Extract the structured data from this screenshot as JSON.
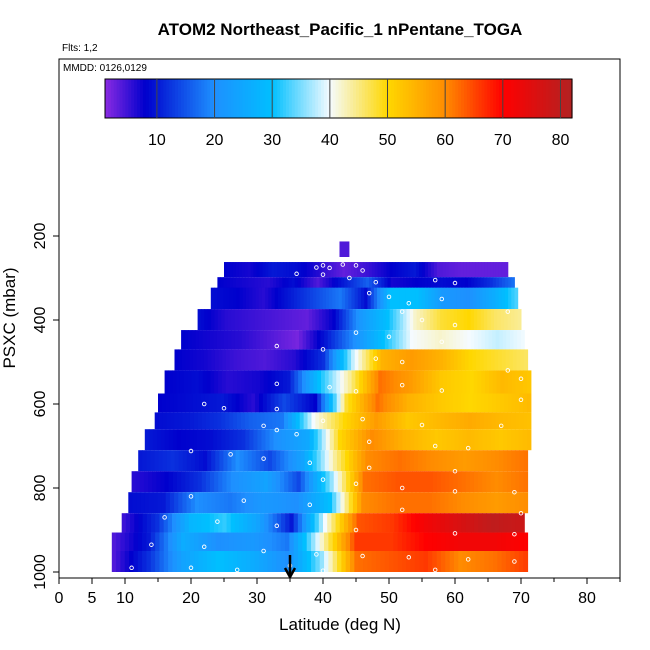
{
  "chart_data": {
    "type": "heatmap",
    "title": "ATOM2 Northeast_Pacific_1 nPentane_TOGA",
    "flights_label": "Flts: 1,2",
    "dates_label": "MMDD: 0126,0129",
    "xlabel": "Latitude (deg N)",
    "ylabel": "PSXC (mbar)",
    "xlim": [
      0,
      85
    ],
    "ylim": [
      1000,
      0
    ],
    "x_ticks": [
      "0",
      "5",
      "10",
      "20",
      "30",
      "40",
      "50",
      "60",
      "70",
      "80"
    ],
    "x_tick_values": [
      0,
      5,
      10,
      20,
      30,
      40,
      50,
      60,
      70,
      80
    ],
    "y_ticks": [
      "200",
      "400",
      "600",
      "800",
      "1000"
    ],
    "y_tick_values": [
      200,
      400,
      600,
      800,
      1000
    ],
    "colorbar": {
      "range": [
        1,
        82
      ],
      "ticks": [
        "10",
        "20",
        "30",
        "40",
        "50",
        "60",
        "70",
        "80"
      ],
      "tick_values": [
        10,
        20,
        30,
        40,
        50,
        60,
        70,
        80
      ],
      "colors": [
        "#8a2be2",
        "#0000cd",
        "#1e90ff",
        "#00bfff",
        "#f5fbff",
        "#ffd700",
        "#ff8c00",
        "#ff0000",
        "#b22222"
      ],
      "color_stops": [
        1,
        8,
        20,
        30,
        40,
        50,
        60,
        70,
        82
      ]
    },
    "grid": false,
    "arrow_marker_latitude": 35,
    "layers": [
      {
        "p_top": 213,
        "p_bot": 250,
        "lat_start": 42.5,
        "lat_end": 44,
        "values": [
          4
        ]
      },
      {
        "p_top": 262,
        "p_bot": 298,
        "lat_start": 25,
        "lat_end": 68,
        "values": [
          8,
          7,
          10,
          9,
          6,
          3,
          5,
          8,
          10,
          4,
          3,
          3,
          3
        ]
      },
      {
        "p_top": 298,
        "p_bot": 343,
        "lat_start": 24,
        "lat_end": 69,
        "values": [
          8,
          7,
          6,
          9,
          4,
          10,
          16,
          7,
          8,
          9,
          8,
          12,
          18
        ]
      },
      {
        "p_top": 323,
        "p_bot": 374,
        "lat_start": 23,
        "lat_end": 69.5,
        "values": [
          9,
          8,
          6,
          10,
          14,
          18,
          9,
          30,
          30,
          22,
          20,
          26,
          34
        ]
      },
      {
        "p_top": 374,
        "p_bot": 424,
        "lat_start": 21,
        "lat_end": 70,
        "values": [
          9,
          6,
          5,
          4,
          3,
          8,
          22,
          30,
          42,
          48,
          50,
          46,
          44
        ]
      },
      {
        "p_top": 424,
        "p_bot": 470,
        "lat_start": 18.5,
        "lat_end": 70.5,
        "values": [
          8,
          7,
          6,
          4,
          2,
          10,
          20,
          30,
          40,
          42,
          40,
          38,
          40
        ]
      },
      {
        "p_top": 470,
        "p_bot": 520,
        "lat_start": 17.5,
        "lat_end": 71,
        "values": [
          8,
          7,
          5,
          4,
          6,
          12,
          38,
          55,
          58,
          55,
          50,
          48,
          46
        ]
      },
      {
        "p_top": 520,
        "p_bot": 575,
        "lat_start": 16,
        "lat_end": 71.5,
        "values": [
          8,
          9,
          6,
          7,
          10,
          30,
          44,
          62,
          58,
          52,
          50,
          54,
          52
        ]
      },
      {
        "p_top": 575,
        "p_bot": 620,
        "lat_start": 15,
        "lat_end": 71.5,
        "values": [
          8,
          9,
          10,
          6,
          14,
          8,
          48,
          62,
          55,
          52,
          50,
          52,
          54
        ]
      },
      {
        "p_top": 620,
        "p_bot": 660,
        "lat_start": 14.5,
        "lat_end": 71.5,
        "values": [
          9,
          10,
          12,
          16,
          18,
          40,
          50,
          58,
          52,
          54,
          56,
          54,
          53
        ]
      },
      {
        "p_top": 660,
        "p_bot": 710,
        "lat_start": 13,
        "lat_end": 71.5,
        "values": [
          10,
          8,
          9,
          12,
          20,
          25,
          50,
          60,
          55,
          52,
          54,
          52,
          54
        ]
      },
      {
        "p_top": 710,
        "p_bot": 760,
        "lat_start": 12,
        "lat_end": 71,
        "values": [
          10,
          12,
          9,
          20,
          14,
          24,
          44,
          60,
          62,
          60,
          58,
          60,
          62
        ]
      },
      {
        "p_top": 760,
        "p_bot": 810,
        "lat_start": 11,
        "lat_end": 71,
        "values": [
          6,
          8,
          12,
          20,
          24,
          14,
          36,
          62,
          64,
          64,
          62,
          60,
          62
        ]
      },
      {
        "p_top": 810,
        "p_bot": 860,
        "lat_start": 10.5,
        "lat_end": 71,
        "values": [
          9,
          10,
          20,
          18,
          22,
          20,
          30,
          60,
          62,
          62,
          60,
          58,
          60
        ]
      },
      {
        "p_top": 860,
        "p_bot": 906,
        "lat_start": 9.5,
        "lat_end": 70.5,
        "values": [
          5,
          12,
          28,
          32,
          24,
          10,
          40,
          64,
          66,
          72,
          76,
          80,
          78
        ]
      },
      {
        "p_top": 906,
        "p_bot": 950,
        "lat_start": 8,
        "lat_end": 71,
        "values": [
          4,
          10,
          26,
          20,
          22,
          18,
          42,
          66,
          66,
          70,
          72,
          72,
          70
        ]
      },
      {
        "p_top": 950,
        "p_bot": 1000,
        "lat_start": 8,
        "lat_end": 71,
        "values": [
          4,
          12,
          24,
          30,
          26,
          20,
          36,
          62,
          64,
          66,
          60,
          62,
          66
        ]
      }
    ],
    "sample_points": [
      [
        39,
        275
      ],
      [
        40,
        270
      ],
      [
        41,
        276
      ],
      [
        43,
        268
      ],
      [
        45,
        270
      ],
      [
        46,
        282
      ],
      [
        36,
        290
      ],
      [
        40,
        292
      ],
      [
        44,
        300
      ],
      [
        48,
        310
      ],
      [
        57,
        305
      ],
      [
        60,
        312
      ],
      [
        47,
        336
      ],
      [
        50,
        345
      ],
      [
        53,
        360
      ],
      [
        58,
        350
      ],
      [
        52,
        380
      ],
      [
        55,
        400
      ],
      [
        60,
        412
      ],
      [
        68,
        380
      ],
      [
        45,
        430
      ],
      [
        50,
        440
      ],
      [
        58,
        452
      ],
      [
        33,
        462
      ],
      [
        40,
        470
      ],
      [
        48,
        492
      ],
      [
        52,
        500
      ],
      [
        68,
        520
      ],
      [
        70,
        540
      ],
      [
        33,
        552
      ],
      [
        41,
        560
      ],
      [
        45,
        570
      ],
      [
        52,
        555
      ],
      [
        58,
        568
      ],
      [
        70,
        590
      ],
      [
        22,
        600
      ],
      [
        25,
        610
      ],
      [
        33,
        612
      ],
      [
        40,
        640
      ],
      [
        46,
        636
      ],
      [
        55,
        650
      ],
      [
        67,
        652
      ],
      [
        31,
        652
      ],
      [
        33,
        662
      ],
      [
        36,
        672
      ],
      [
        47,
        690
      ],
      [
        57,
        700
      ],
      [
        62,
        705
      ],
      [
        20,
        712
      ],
      [
        26,
        720
      ],
      [
        31,
        730
      ],
      [
        38,
        740
      ],
      [
        47,
        752
      ],
      [
        60,
        760
      ],
      [
        40,
        780
      ],
      [
        45,
        790
      ],
      [
        52,
        800
      ],
      [
        60,
        808
      ],
      [
        69,
        810
      ],
      [
        20,
        820
      ],
      [
        28,
        830
      ],
      [
        38,
        840
      ],
      [
        52,
        852
      ],
      [
        70,
        860
      ],
      [
        16,
        870
      ],
      [
        24,
        880
      ],
      [
        33,
        890
      ],
      [
        45,
        900
      ],
      [
        60,
        908
      ],
      [
        69,
        910
      ],
      [
        14,
        935
      ],
      [
        22,
        940
      ],
      [
        31,
        950
      ],
      [
        39,
        958
      ],
      [
        46,
        962
      ],
      [
        53,
        965
      ],
      [
        62,
        970
      ],
      [
        69,
        975
      ],
      [
        11,
        990
      ],
      [
        20,
        990
      ],
      [
        27,
        995
      ],
      [
        35,
        985
      ],
      [
        40,
        997
      ],
      [
        57,
        995
      ]
    ]
  }
}
